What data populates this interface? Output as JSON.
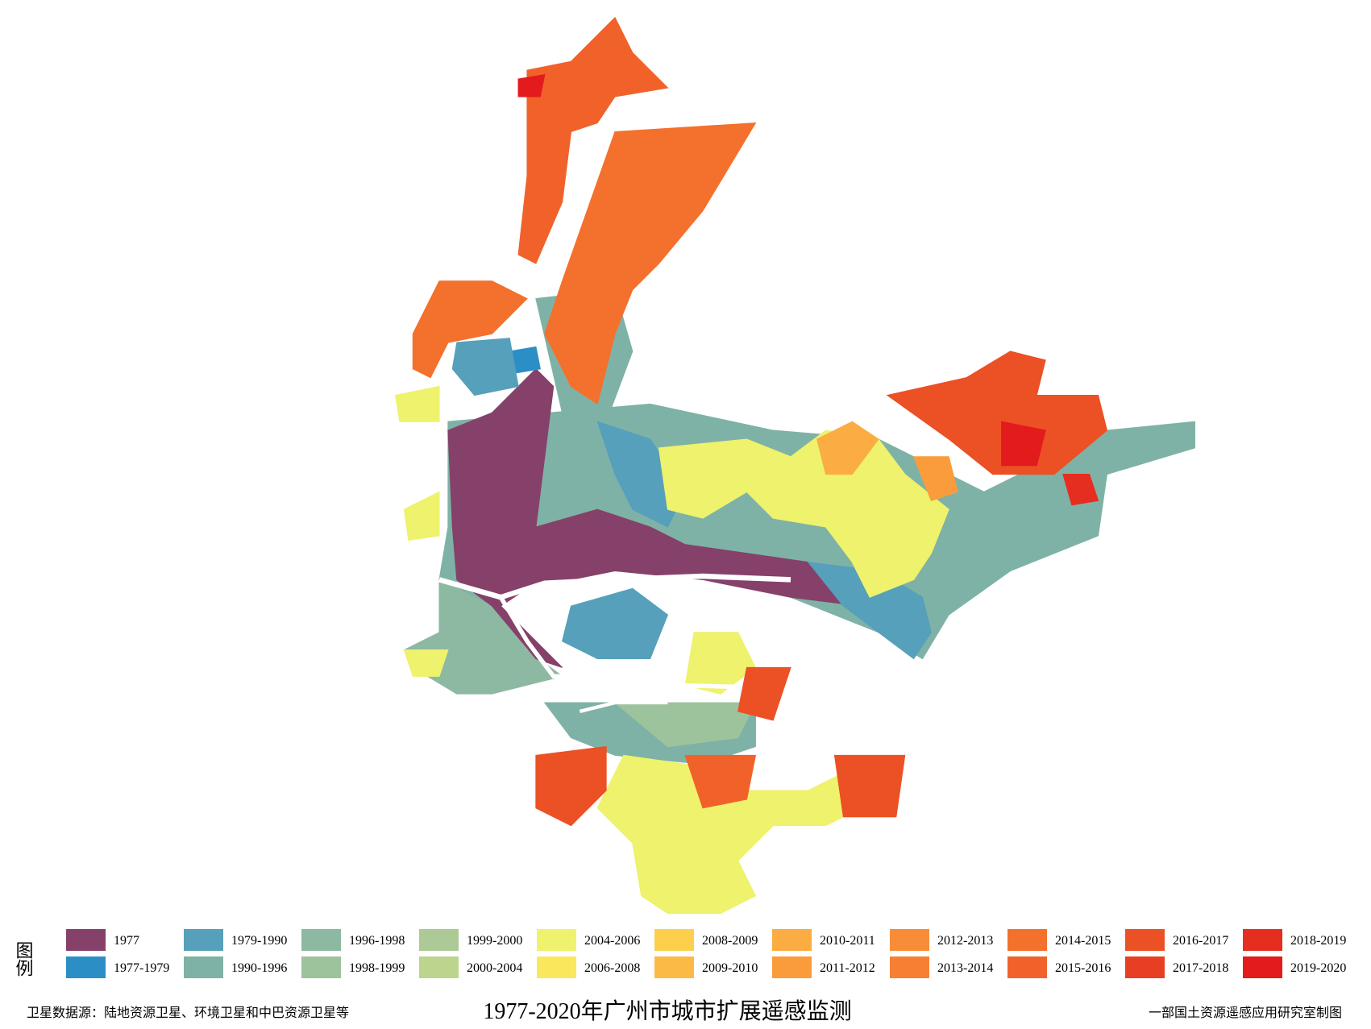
{
  "title": "1977-2020年广州市城市扩展遥感监测",
  "source": "卫星数据源：陆地资源卫星、环境卫星和中巴资源卫星等",
  "credit": "一部国土资源遥感应用研究室制图",
  "legend": {
    "heading": "图例",
    "items": [
      {
        "label": "1977",
        "color": "#86416a"
      },
      {
        "label": "1977-1979",
        "color": "#2b8fc6"
      },
      {
        "label": "1979-1990",
        "color": "#56a0bb"
      },
      {
        "label": "1990-1996",
        "color": "#7fb2a6"
      },
      {
        "label": "1996-1998",
        "color": "#8db8a2"
      },
      {
        "label": "1998-1999",
        "color": "#9dc39c"
      },
      {
        "label": "1999-2000",
        "color": "#acc996"
      },
      {
        "label": "2000-2004",
        "color": "#bcd48e"
      },
      {
        "label": "2004-2006",
        "color": "#eef26c"
      },
      {
        "label": "2006-2008",
        "color": "#fbe75c"
      },
      {
        "label": "2008-2009",
        "color": "#fcd04d"
      },
      {
        "label": "2009-2010",
        "color": "#fbba45"
      },
      {
        "label": "2010-2011",
        "color": "#fbac43"
      },
      {
        "label": "2011-2012",
        "color": "#fa9c3c"
      },
      {
        "label": "2012-2013",
        "color": "#f98c37"
      },
      {
        "label": "2013-2014",
        "color": "#f77f31"
      },
      {
        "label": "2014-2015",
        "color": "#f4702d"
      },
      {
        "label": "2015-2016",
        "color": "#f0622a"
      },
      {
        "label": "2016-2017",
        "color": "#ec5025"
      },
      {
        "label": "2017-2018",
        "color": "#e83f24"
      },
      {
        "label": "2018-2019",
        "color": "#e52e20"
      },
      {
        "label": "2019-2020",
        "color": "#e31b1c"
      }
    ]
  }
}
